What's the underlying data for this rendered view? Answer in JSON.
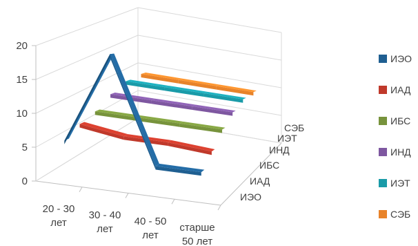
{
  "chart_data": {
    "type": "line",
    "subtype": "3d-line",
    "categories": [
      "20 - 30 лет",
      "30 - 40 лет",
      "40 - 50 лет",
      "старше 50 лет"
    ],
    "series": [
      {
        "name": "ИЭО",
        "color": "#1F5F91",
        "values": [
          6,
          20,
          4,
          4
        ]
      },
      {
        "name": "ИАД",
        "color": "#C0392B",
        "values": [
          7.5,
          6.5,
          6.5,
          6.0
        ]
      },
      {
        "name": "ИБС",
        "color": "#77933C",
        "values": [
          8.5,
          8.5,
          8.5,
          8.5
        ]
      },
      {
        "name": "ИНД",
        "color": "#7E57A0",
        "values": [
          10.5,
          10.5,
          10.5,
          10.5
        ]
      },
      {
        "name": "ИЭТ",
        "color": "#1A9BA8",
        "values": [
          12,
          12,
          12,
          12
        ]
      },
      {
        "name": "СЭБ",
        "color": "#E8832A",
        "values": [
          12.5,
          12.5,
          12.5,
          12.5
        ]
      }
    ],
    "ylim": [
      0,
      20
    ],
    "yticks": [
      "0",
      "5",
      "10",
      "15",
      "20"
    ],
    "category_labels": [
      [
        "20 - 30",
        "лет"
      ],
      [
        "30 - 40",
        "лет"
      ],
      [
        "40 - 50",
        "лет"
      ],
      [
        "старше",
        "50 лет"
      ]
    ],
    "depth_labels": [
      "ИЭО",
      "ИАД",
      "ИБС",
      "ИНД",
      "ИЭТ",
      "СЭБ"
    ],
    "grid": true,
    "legend": "right"
  }
}
